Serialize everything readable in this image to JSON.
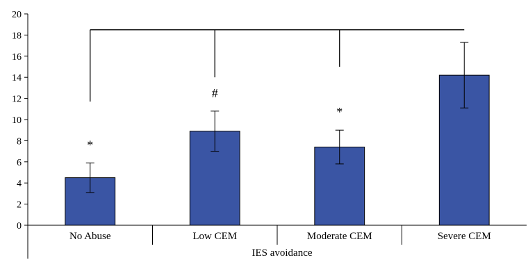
{
  "chart_data": {
    "type": "bar",
    "title": "",
    "xlabel": "IES avoidance",
    "ylabel": "",
    "ylim": [
      0,
      20
    ],
    "yticks": [
      0,
      2,
      4,
      6,
      8,
      10,
      12,
      14,
      16,
      18,
      20
    ],
    "grid": false,
    "bar_color": "#3a55a4",
    "categories": [
      "No Abuse",
      "Low CEM",
      "Moderate CEM",
      "Severe CEM"
    ],
    "values": [
      4.5,
      8.9,
      7.4,
      14.2
    ],
    "error": [
      1.4,
      1.9,
      1.6,
      3.1
    ],
    "annotations": [
      {
        "category": "No Abuse",
        "text": "*"
      },
      {
        "category": "Low CEM",
        "text": "#"
      },
      {
        "category": "Moderate CEM",
        "text": "*"
      }
    ],
    "comparison_bracket": {
      "y": 18.5,
      "spans": [
        "No Abuse",
        "Severe CEM"
      ],
      "drops": [
        {
          "category": "No Abuse",
          "to": 11.7
        },
        {
          "category": "Low CEM",
          "to": 14.0
        },
        {
          "category": "Moderate CEM",
          "to": 15.0
        },
        {
          "category": "Severe CEM",
          "to": 18.5
        }
      ]
    }
  }
}
